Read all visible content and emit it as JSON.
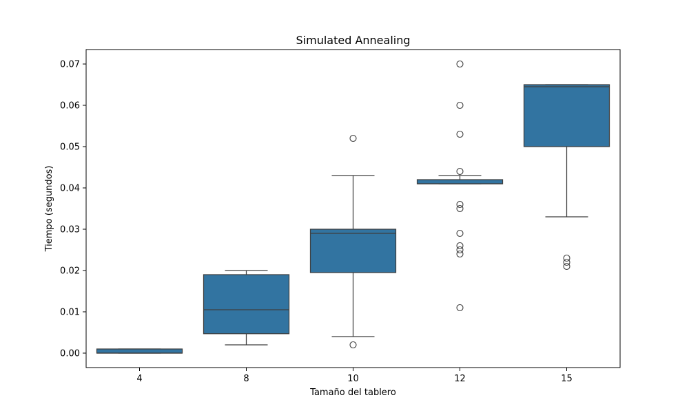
{
  "chart_data": {
    "type": "box",
    "title": "Simulated Annealing",
    "xlabel": "Tamaño del tablero",
    "ylabel": "Tiempo (segundos)",
    "categories": [
      "4",
      "8",
      "10",
      "12",
      "15"
    ],
    "ylim": [
      -0.0035,
      0.0735
    ],
    "yticks": [
      0.0,
      0.01,
      0.02,
      0.03,
      0.04,
      0.05,
      0.06,
      0.07
    ],
    "ytick_labels": [
      "0.00",
      "0.01",
      "0.02",
      "0.03",
      "0.04",
      "0.05",
      "0.06",
      "0.07"
    ],
    "grid": false,
    "box_color": "#3274a1",
    "edge_color": "#3f3f3f",
    "boxes": [
      {
        "category": "4",
        "whisker_low": 0.0,
        "q1": 0.0,
        "median": 0.0,
        "q3": 0.001,
        "whisker_high": 0.001,
        "outliers": []
      },
      {
        "category": "8",
        "whisker_low": 0.002,
        "q1": 0.0047,
        "median": 0.0105,
        "q3": 0.019,
        "whisker_high": 0.02,
        "outliers": []
      },
      {
        "category": "10",
        "whisker_low": 0.004,
        "q1": 0.0195,
        "median": 0.029,
        "q3": 0.03,
        "whisker_high": 0.043,
        "outliers": [
          0.002,
          0.052
        ]
      },
      {
        "category": "12",
        "whisker_low": 0.041,
        "q1": 0.041,
        "median": 0.041,
        "q3": 0.042,
        "whisker_high": 0.043,
        "outliers": [
          0.011,
          0.024,
          0.025,
          0.026,
          0.029,
          0.035,
          0.036,
          0.044,
          0.053,
          0.06,
          0.07
        ]
      },
      {
        "category": "15",
        "whisker_low": 0.033,
        "q1": 0.05,
        "median": 0.0645,
        "q3": 0.065,
        "whisker_high": 0.065,
        "outliers": [
          0.021,
          0.022,
          0.023
        ]
      }
    ]
  }
}
